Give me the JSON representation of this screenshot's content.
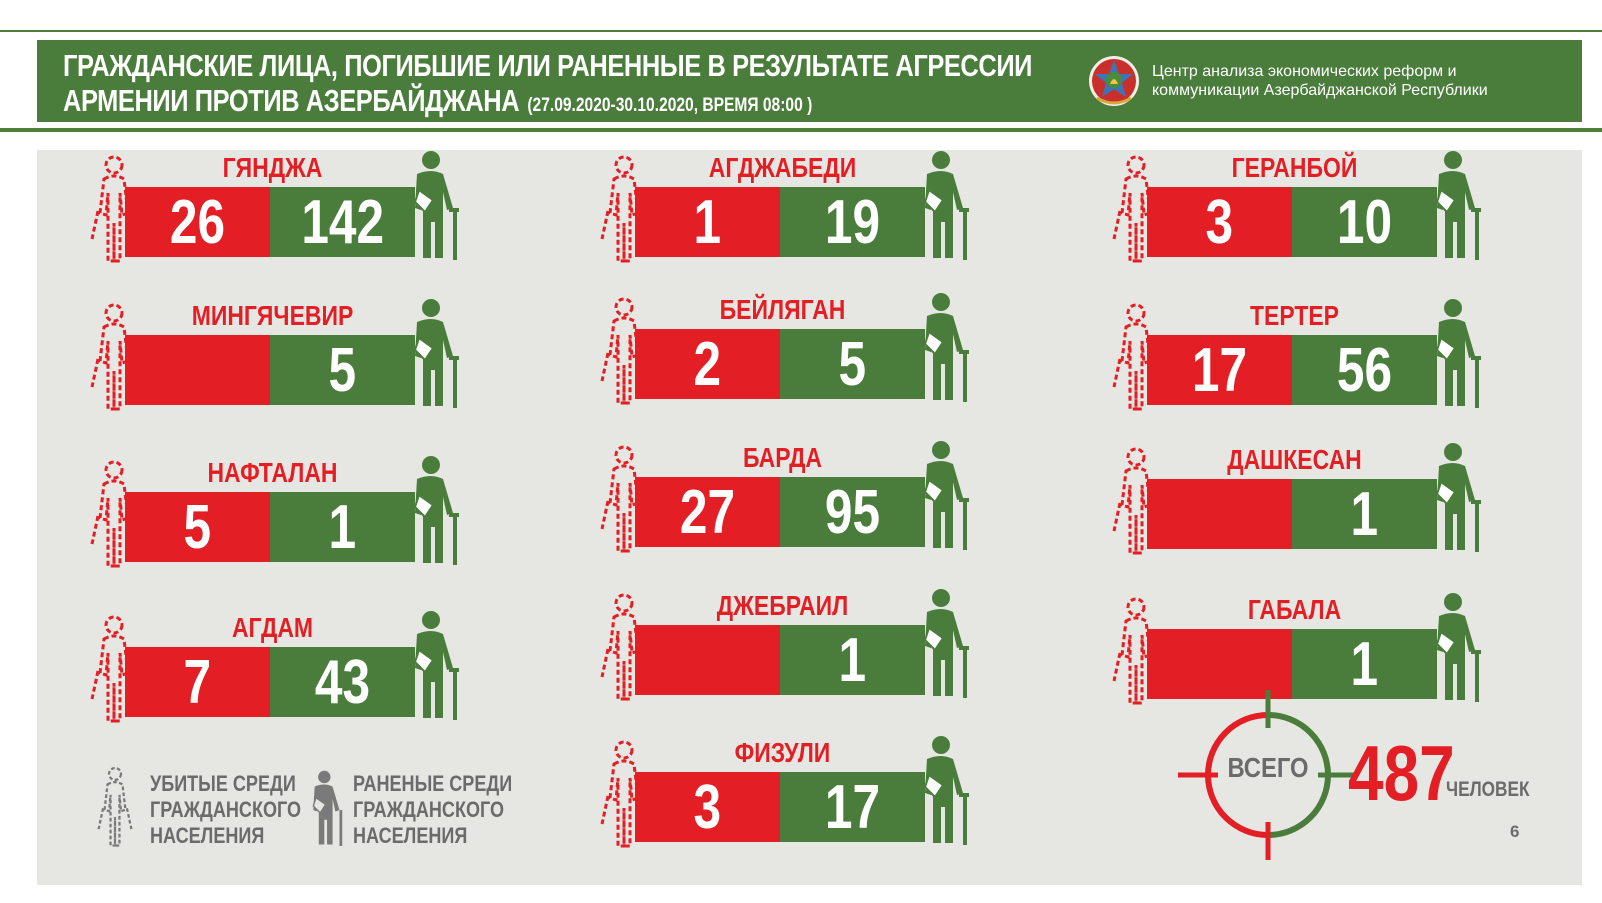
{
  "header": {
    "title_line1": "ГРАЖДАНСКИЕ ЛИЦА, ПОГИБШИЕ ИЛИ РАНЕННЫЕ В РЕЗУЛЬТАТЕ АГРЕССИИ",
    "title_line2": "АРМЕНИИ ПРОТИВ АЗЕРБАЙДЖАНА",
    "date_range": "(27.09.2020-30.10.2020, ВРЕМЯ 08:00 )",
    "org_line1": "Центр анализа экономических реформ и",
    "org_line2": "коммуникации Азербайджанской Республики",
    "emblem_icon": "azerbaijan-emblem-icon"
  },
  "colors": {
    "red": "#e31e24",
    "green": "#4a7d3b",
    "panel": "#e6e7e2",
    "gray": "#6b6b6b"
  },
  "regions": [
    {
      "name": "ГЯНДЖА",
      "killed": "26",
      "wounded": "142"
    },
    {
      "name": "МИНГЯЧЕВИР",
      "killed": "",
      "wounded": "5"
    },
    {
      "name": "НАФТАЛАН",
      "killed": "5",
      "wounded": "1"
    },
    {
      "name": "АГДАМ",
      "killed": "7",
      "wounded": "43"
    },
    {
      "name": "АГДЖАБЕДИ",
      "killed": "1",
      "wounded": "19"
    },
    {
      "name": "БЕЙЛЯГАН",
      "killed": "2",
      "wounded": "5"
    },
    {
      "name": "БАРДА",
      "killed": "27",
      "wounded": "95"
    },
    {
      "name": "ДЖЕБРАИЛ",
      "killed": "",
      "wounded": "1"
    },
    {
      "name": "ФИЗУЛИ",
      "killed": "3",
      "wounded": "17"
    },
    {
      "name": "ГЕРАНБОЙ",
      "killed": "3",
      "wounded": "10"
    },
    {
      "name": "ТЕРТЕР",
      "killed": "17",
      "wounded": "56"
    },
    {
      "name": "ДАШКЕСАН",
      "killed": "",
      "wounded": "1"
    },
    {
      "name": "ГАБАЛА",
      "killed": "",
      "wounded": "1"
    }
  ],
  "legend": {
    "killed_line1": "УБИТЫЕ СРЕДИ",
    "killed_line2": "ГРАЖДАНСКОГО",
    "killed_line3": "НАСЕЛЕНИЯ",
    "wounded_line1": "РАНЕНЫЕ СРЕДИ",
    "wounded_line2": "ГРАЖДАНСКОГО",
    "wounded_line3": "НАСЕЛЕНИЯ"
  },
  "total": {
    "label": "ВСЕГО",
    "value": "487",
    "unit": "ЧЕЛОВЕК"
  },
  "page_number": "6"
}
